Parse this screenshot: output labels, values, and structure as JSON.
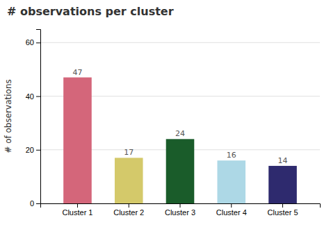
{
  "chart_data": {
    "type": "bar",
    "title": "# observations per cluster",
    "ylabel": "# of observations",
    "categories": [
      "Cluster 1",
      "Cluster 2",
      "Cluster 3",
      "Cluster 4",
      "Cluster 5"
    ],
    "values": [
      47,
      17,
      24,
      16,
      14
    ],
    "colors": [
      "#d4667a",
      "#d4c96a",
      "#1a5c2a",
      "#add8e6",
      "#2e2a6e"
    ],
    "ylim": [
      0,
      65
    ],
    "yticks": [
      0,
      20,
      40,
      60
    ],
    "grid": true,
    "data_labels": true
  }
}
